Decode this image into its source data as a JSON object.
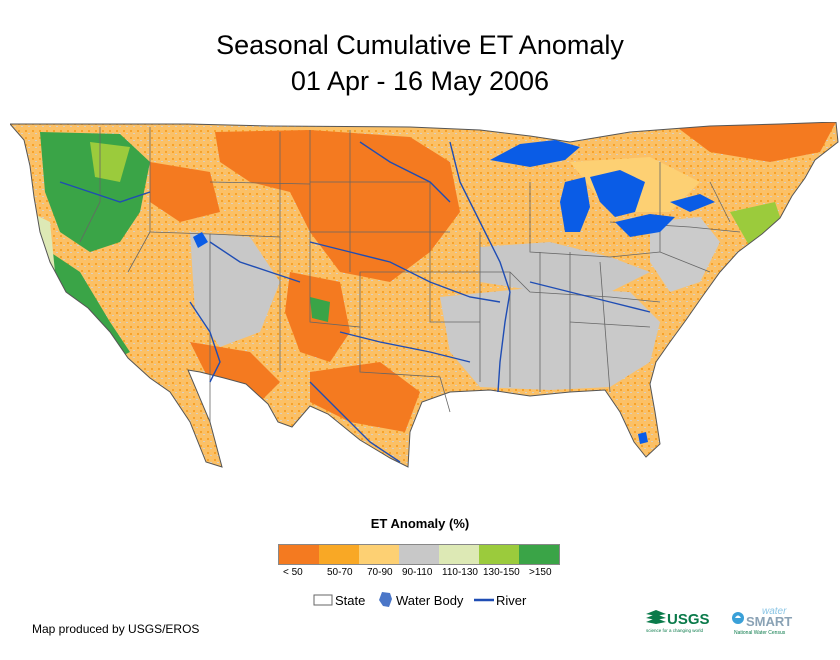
{
  "title": {
    "line1": "Seasonal Cumulative ET Anomaly",
    "line2": "01 Apr - 16 May 2006"
  },
  "legend": {
    "title": "ET Anomaly (%)",
    "classes": [
      {
        "label": "< 50",
        "color": "#f47a20"
      },
      {
        "label": "50-70",
        "color": "#f9a825"
      },
      {
        "label": "70-90",
        "color": "#fdd073"
      },
      {
        "label": "90-110",
        "color": "#c8c8c8"
      },
      {
        "label": "110-130",
        "color": "#dde9b5"
      },
      {
        "label": "130-150",
        "color": "#9bcb3c"
      },
      {
        "label": ">150",
        "color": "#3aa447"
      }
    ],
    "features": {
      "state": "State",
      "water_body": "Water Body",
      "river": "River"
    }
  },
  "colors": {
    "water": "#0a5ce6",
    "river": "#1f4db4",
    "state_line": "#666666"
  },
  "credit": "Map produced by USGS/EROS",
  "logos": {
    "usgs": "USGS",
    "usgs_tagline": "science for a changing world",
    "water_word": "water",
    "smart_word": "SMART",
    "smart_tagline": "National Water Census"
  }
}
